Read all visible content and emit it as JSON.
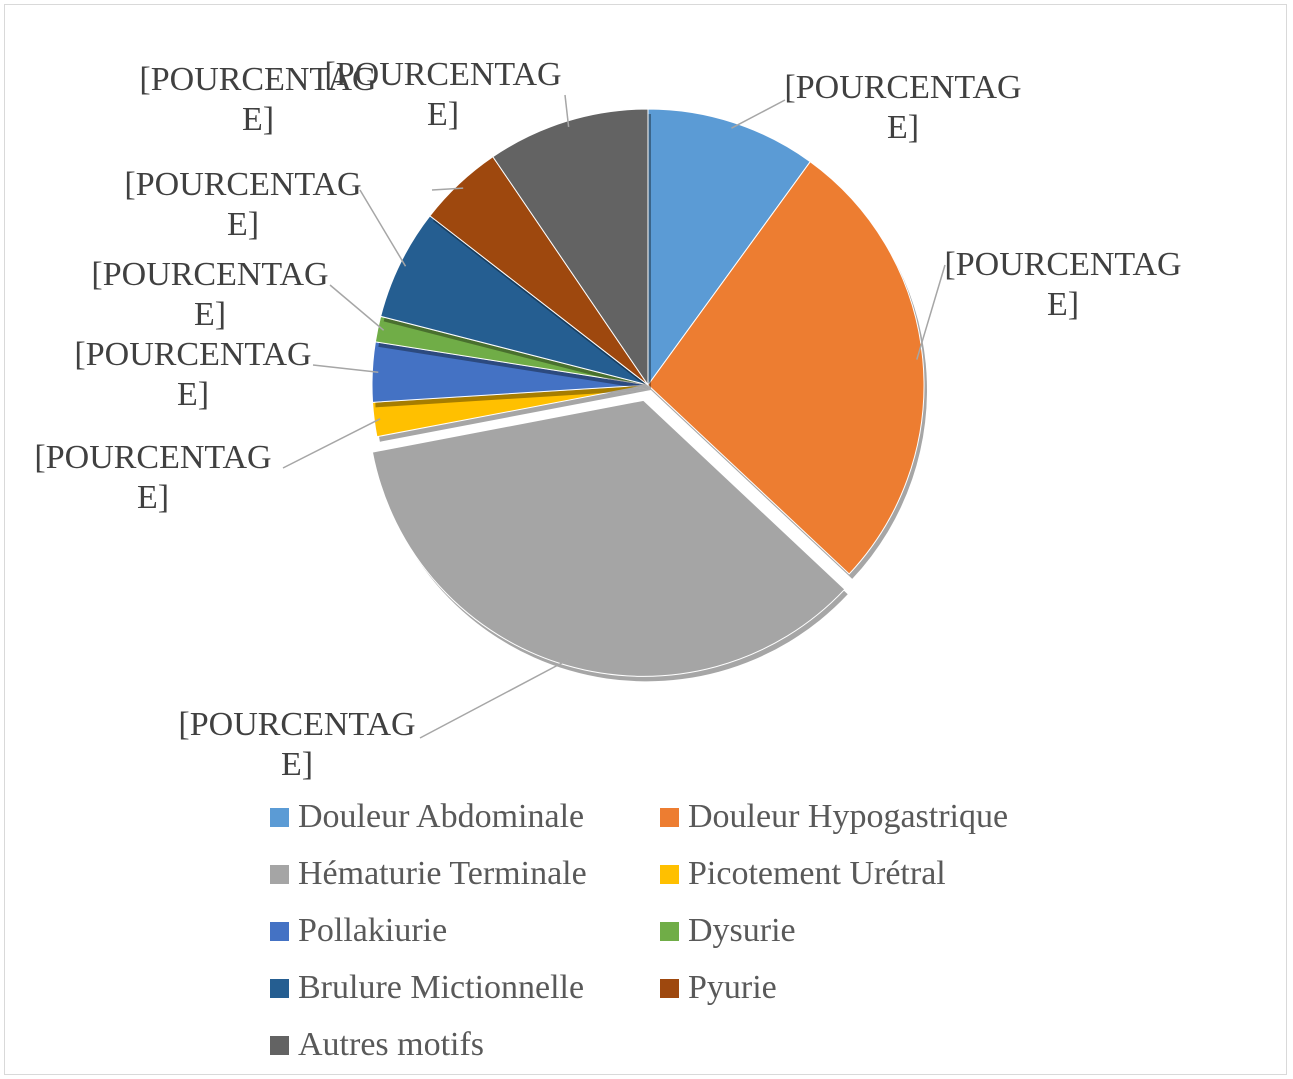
{
  "chart_data": {
    "type": "pie",
    "categories": [
      "Douleur Abdominale",
      "Douleur Hypogastrique",
      "Hématurie Terminale",
      "Picotement Urétral",
      "Pollakiurie",
      "Dysurie",
      "Brulure Mictionnelle",
      "Pyurie",
      "Autres motifs"
    ],
    "values": [
      10,
      27,
      35,
      2,
      3.5,
      1.5,
      6.5,
      5,
      9.5
    ],
    "value_labels": [
      "[POURCENTAGE]",
      "[POURCENTAGE]",
      "[POURCENTAGE]",
      "[POURCENTAGE]",
      "[POURCENTAGE]",
      "[POURCENTAGE]",
      "[POURCENTAGE]",
      "[POURCENTAGE]",
      "[POURCENTAGE]"
    ],
    "colors": [
      "#5b9bd5",
      "#ed7d31",
      "#a5a5a5",
      "#ffc000",
      "#4472c4",
      "#70ad47",
      "#255e91",
      "#9e480e",
      "#636363"
    ],
    "legend": "bottom"
  }
}
